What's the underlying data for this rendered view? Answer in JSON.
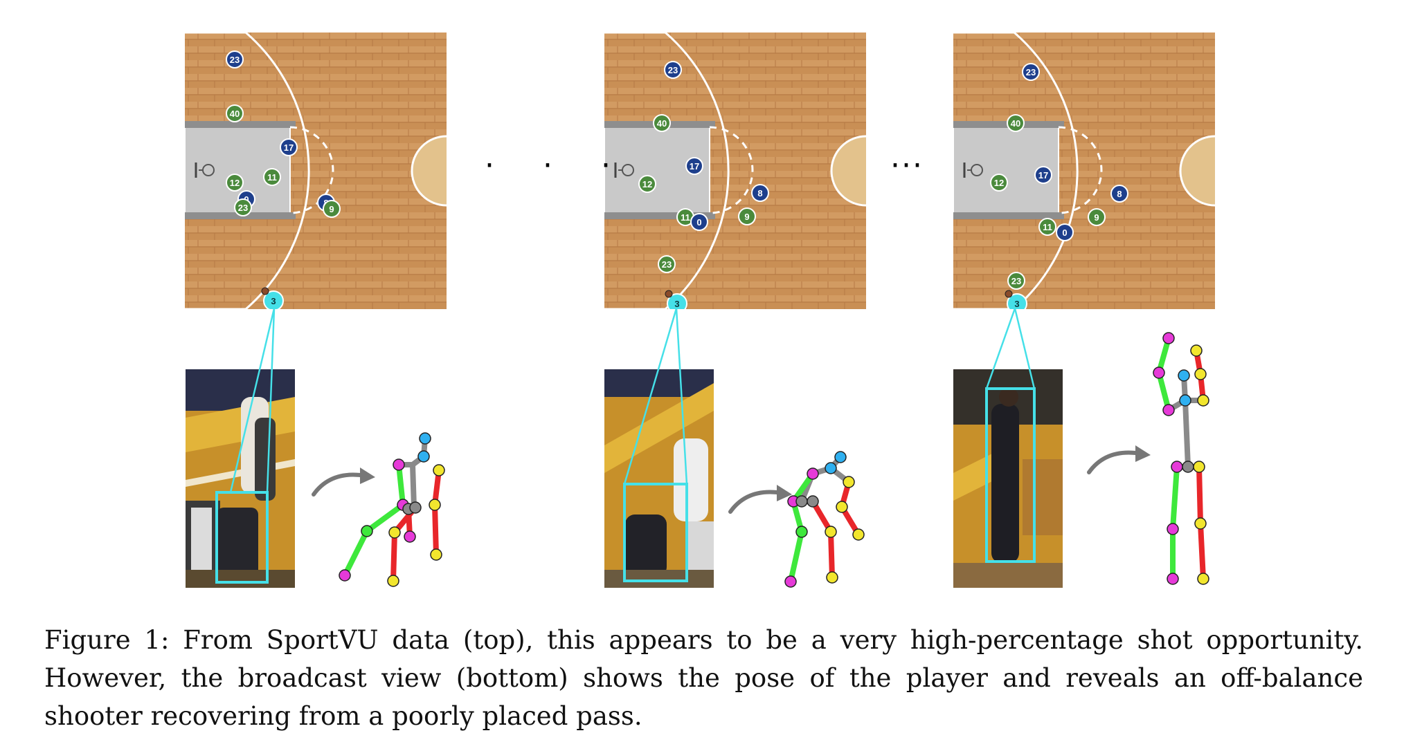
{
  "figure": {
    "caption": "Figure 1: From SportVU data (top), this appears to be a very high-percentage shot opportunity. However, the broadcast view (bottom) shows the pose of the player and reveals an off-balance shooter recovering from a poorly placed pass.",
    "separators": [
      "· · ·",
      "···"
    ]
  },
  "colors": {
    "wood": "#c98f55",
    "paint": "#c9c9c9",
    "offense_blue": "#1e3f8c",
    "defense_green": "#4a8a3c",
    "highlight_cyan": "#45e0e8",
    "limb_green": "#3ee83c",
    "limb_red": "#e8262a",
    "joint_magenta": "#e63ad8",
    "joint_yellow": "#f2e62e",
    "joint_cyan": "#2fb0f0",
    "spine_gray": "#8a8a8a"
  },
  "panels": [
    {
      "players": [
        {
          "label": "23",
          "team": "blue"
        },
        {
          "label": "40",
          "team": "green"
        },
        {
          "label": "17",
          "team": "blue"
        },
        {
          "label": "12",
          "team": "green"
        },
        {
          "label": "11",
          "team": "green"
        },
        {
          "label": "0",
          "team": "blue"
        },
        {
          "label": "23",
          "team": "green"
        },
        {
          "label": "8",
          "team": "blue"
        },
        {
          "label": "9",
          "team": "green"
        },
        {
          "label": "3",
          "team": "cyan"
        }
      ]
    },
    {
      "players": [
        {
          "label": "23",
          "team": "blue"
        },
        {
          "label": "40",
          "team": "green"
        },
        {
          "label": "17",
          "team": "blue"
        },
        {
          "label": "12",
          "team": "green"
        },
        {
          "label": "8",
          "team": "blue"
        },
        {
          "label": "9",
          "team": "green"
        },
        {
          "label": "11",
          "team": "green"
        },
        {
          "label": "0",
          "team": "blue"
        },
        {
          "label": "23",
          "team": "green"
        },
        {
          "label": "3",
          "team": "cyan"
        }
      ]
    },
    {
      "players": [
        {
          "label": "23",
          "team": "blue"
        },
        {
          "label": "40",
          "team": "green"
        },
        {
          "label": "12",
          "team": "green"
        },
        {
          "label": "17",
          "team": "blue"
        },
        {
          "label": "8",
          "team": "blue"
        },
        {
          "label": "9",
          "team": "green"
        },
        {
          "label": "11",
          "team": "green"
        },
        {
          "label": "0",
          "team": "blue"
        },
        {
          "label": "23",
          "team": "green"
        },
        {
          "label": "3",
          "team": "cyan"
        }
      ]
    }
  ]
}
